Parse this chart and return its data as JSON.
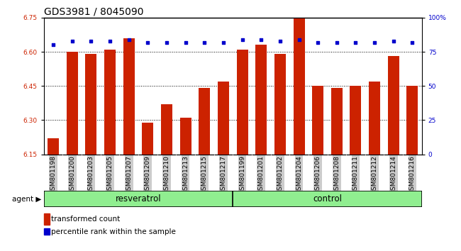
{
  "title": "GDS3981 / 8045090",
  "categories": [
    "GSM801198",
    "GSM801200",
    "GSM801203",
    "GSM801205",
    "GSM801207",
    "GSM801209",
    "GSM801210",
    "GSM801213",
    "GSM801215",
    "GSM801217",
    "GSM801199",
    "GSM801201",
    "GSM801202",
    "GSM801204",
    "GSM801206",
    "GSM801208",
    "GSM801211",
    "GSM801212",
    "GSM801214",
    "GSM801216"
  ],
  "bar_values": [
    6.22,
    6.6,
    6.59,
    6.61,
    6.66,
    6.29,
    6.37,
    6.31,
    6.44,
    6.47,
    6.61,
    6.63,
    6.59,
    6.75,
    6.45,
    6.44,
    6.45,
    6.47,
    6.58,
    6.45
  ],
  "percentile_values": [
    80,
    83,
    83,
    83,
    84,
    82,
    82,
    82,
    82,
    82,
    84,
    84,
    83,
    84,
    82,
    82,
    82,
    82,
    83,
    82
  ],
  "bar_color": "#cc2200",
  "dot_color": "#0000cc",
  "ylim_left": [
    6.15,
    6.75
  ],
  "ylim_right": [
    0,
    100
  ],
  "yticks_left": [
    6.15,
    6.3,
    6.45,
    6.6,
    6.75
  ],
  "yticks_right": [
    0,
    25,
    50,
    75,
    100
  ],
  "ytick_labels_right": [
    "0",
    "25",
    "50",
    "75",
    "100%"
  ],
  "grid_values": [
    6.3,
    6.45,
    6.6
  ],
  "resveratrol_count": 10,
  "control_count": 10,
  "group_label_resveratrol": "resveratrol",
  "group_label_control": "control",
  "agent_label": "agent",
  "legend_bar_label": "transformed count",
  "legend_dot_label": "percentile rank within the sample",
  "bar_width": 0.6,
  "plot_bg_color": "#ffffff",
  "tick_label_bg": "#cccccc",
  "group_panel_color": "#90ee90",
  "title_fontsize": 10,
  "tick_fontsize": 6.5,
  "axis_label_color_left": "#cc2200",
  "axis_label_color_right": "#0000cc"
}
